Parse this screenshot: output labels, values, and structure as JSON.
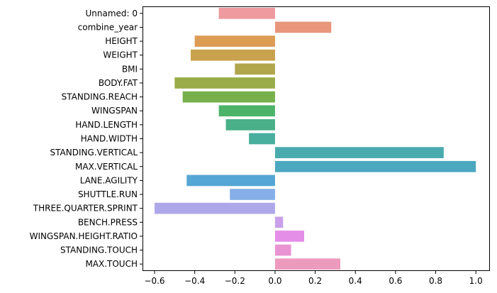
{
  "chart_data": {
    "type": "bar",
    "orientation": "horizontal",
    "title": "",
    "xlabel": "",
    "ylabel": "",
    "xlim": [
      -0.66,
      1.07
    ],
    "x_ticks": [
      -0.6,
      -0.4,
      -0.2,
      0.0,
      0.2,
      0.4,
      0.6,
      0.8,
      1.0
    ],
    "x_tick_labels": [
      "−0.6",
      "−0.4",
      "−0.2",
      "0.0",
      "0.2",
      "0.4",
      "0.6",
      "0.8",
      "1.0"
    ],
    "grid": false,
    "legend": "none",
    "categories": [
      "Unnamed: 0",
      "combine_year",
      "HEIGHT",
      "WEIGHT",
      "BMI",
      "BODY.FAT",
      "STANDING.REACH",
      "WINGSPAN",
      "HAND.LENGTH",
      "HAND.WIDTH",
      "STANDING.VERTICAL",
      "MAX.VERTICAL",
      "LANE.AGILITY",
      "SHUTTLE.RUN",
      "THREE.QUARTER.SPRINT",
      "BENCH.PRESS",
      "WINGSPAN.HEIGHT.RATIO",
      "STANDING.TOUCH",
      "MAX.TOUCH"
    ],
    "values": [
      -0.28,
      0.28,
      -0.4,
      -0.42,
      -0.2,
      -0.5,
      -0.46,
      -0.28,
      -0.245,
      -0.13,
      0.84,
      1.0,
      -0.44,
      -0.225,
      -0.6,
      0.04,
      0.145,
      0.08,
      0.325
    ],
    "colors": [
      "#ee9a9e",
      "#e8967c",
      "#dd9c54",
      "#c8a24d",
      "#b2a64d",
      "#9aac48",
      "#77b04b",
      "#4eb36a",
      "#4ab089",
      "#48ae9d",
      "#4aabaf",
      "#4ba8bf",
      "#54a6d4",
      "#86aee8",
      "#aea8ea",
      "#caa0ea",
      "#e48ee8",
      "#ea93d3",
      "#ec9bbc"
    ]
  }
}
